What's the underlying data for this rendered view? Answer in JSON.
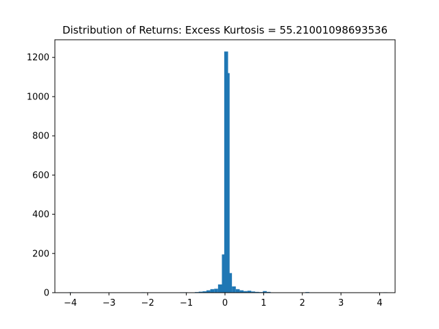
{
  "chart_data": {
    "type": "bar",
    "title": "Distribution of Returns: Excess Kurtosis = 55.21001098693536",
    "xlabel": "",
    "ylabel": "",
    "xlim": [
      -4.4,
      4.4
    ],
    "ylim": [
      0,
      1290
    ],
    "xticks": [
      -4,
      -3,
      -2,
      -1,
      0,
      1,
      2,
      3,
      4
    ],
    "xtick_labels": [
      "−4",
      "−3",
      "−2",
      "−1",
      "0",
      "1",
      "2",
      "3",
      "4"
    ],
    "yticks": [
      0,
      200,
      400,
      600,
      800,
      1000,
      1200
    ],
    "ytick_labels": [
      "0",
      "200",
      "400",
      "600",
      "800",
      "1000",
      "1200"
    ],
    "bar_color": "#1f77b4",
    "grid": false,
    "legend": "none",
    "bins": {
      "left_edges": [
        -4.04,
        -2.16,
        -1.16,
        -1.06,
        -0.78,
        -0.68,
        -0.58,
        -0.48,
        -0.38,
        -0.28,
        -0.18,
        -0.08,
        -0.02,
        0.02,
        0.08,
        0.18,
        0.28,
        0.38,
        0.48,
        0.58,
        0.68,
        0.78,
        0.88,
        0.98,
        1.08,
        2.08,
        4.1
      ],
      "width": 0.1,
      "counts": [
        2,
        2,
        2,
        2,
        3,
        5,
        7,
        12,
        18,
        20,
        42,
        195,
        1230,
        1120,
        100,
        32,
        18,
        12,
        8,
        10,
        6,
        4,
        3,
        8,
        4,
        3,
        2
      ]
    }
  }
}
